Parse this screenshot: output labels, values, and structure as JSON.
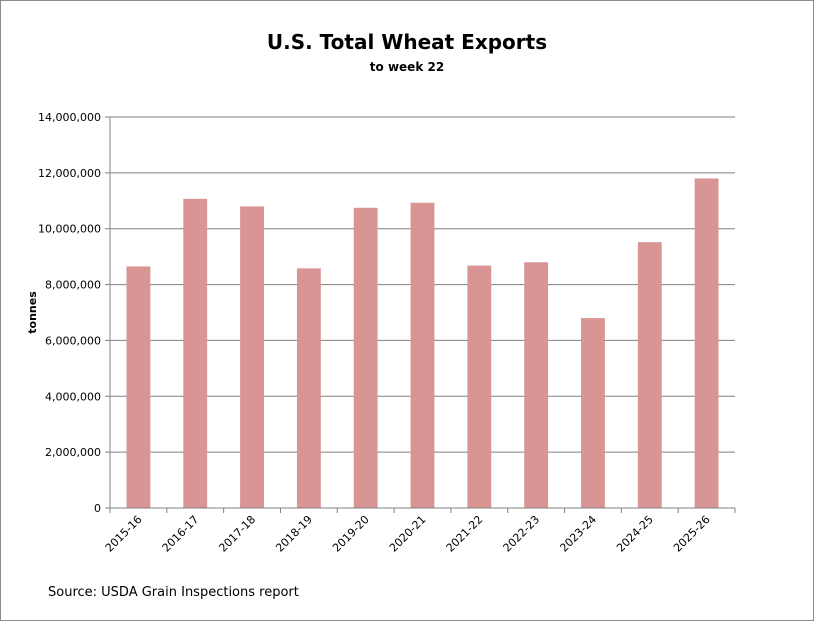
{
  "chart_data": {
    "type": "bar",
    "title": "U.S. Total Wheat Exports",
    "subtitle": "to week 22",
    "ylabel": "tonnes",
    "xlabel": "",
    "categories": [
      "2015-16",
      "2016-17",
      "2017-18",
      "2018-19",
      "2019-20",
      "2020-21",
      "2021-22",
      "2022-23",
      "2023-24",
      "2024-25",
      "2025-26"
    ],
    "values": [
      8650000,
      11070000,
      10800000,
      8580000,
      10750000,
      10930000,
      8680000,
      8800000,
      6800000,
      9520000,
      11800000
    ],
    "ylim": [
      0,
      14000000
    ],
    "yticks": [
      0,
      2000000,
      4000000,
      6000000,
      8000000,
      10000000,
      12000000,
      14000000
    ],
    "ytick_labels": [
      "0",
      "2,000,000",
      "4,000,000",
      "6,000,000",
      "8,000,000",
      "10,000,000",
      "12,000,000",
      "14,000,000"
    ],
    "grid": true,
    "legend": "none",
    "bar_color": "#d99594",
    "source": "Source: USDA Grain Inspections report"
  }
}
